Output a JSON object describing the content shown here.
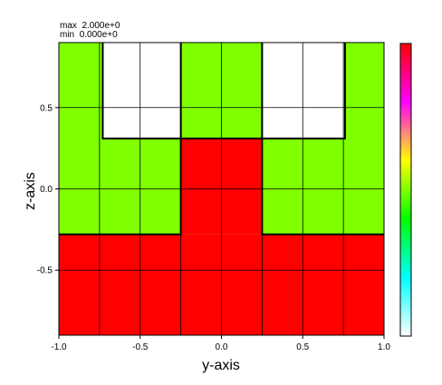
{
  "header": {
    "max_label": "max",
    "max_value": "2.000e+0",
    "min_label": "min",
    "min_value": "0.000e+0"
  },
  "chart_data": {
    "type": "heatmap",
    "xlabel": "y-axis",
    "ylabel": "z-axis",
    "xlim": [
      -1.0,
      1.0
    ],
    "ylim": [
      -0.9,
      0.9
    ],
    "x_ticks": [
      -1.0,
      -0.5,
      0.0,
      0.5,
      1.0
    ],
    "x_tick_labels": [
      "-1.0",
      "-0.5",
      "0.0",
      "0.5",
      "1.0"
    ],
    "y_ticks": [
      -0.5,
      0.0,
      0.5
    ],
    "y_tick_labels": [
      "-0.5",
      "0.0",
      "0.5"
    ],
    "grid": true,
    "value_range": [
      0,
      2
    ],
    "colormap": [
      "#ffffff",
      "#00ffff",
      "#00ff00",
      "#ffff00",
      "#ff00ff",
      "#ff0000"
    ],
    "regions": [
      {
        "value": 1,
        "color": "#7fff00",
        "y": [
          -1.0,
          1.0
        ],
        "z": [
          -0.28,
          0.9
        ]
      },
      {
        "value": 0,
        "color": "#ffffff",
        "y": [
          -0.73,
          -0.25
        ],
        "z": [
          0.31,
          0.9
        ]
      },
      {
        "value": 0,
        "color": "#ffffff",
        "y": [
          0.25,
          0.76
        ],
        "z": [
          0.31,
          0.9
        ]
      },
      {
        "value": 2,
        "color": "#ff0000",
        "y": [
          -1.0,
          1.0
        ],
        "z": [
          -0.9,
          -0.28
        ]
      },
      {
        "value": 2,
        "color": "#ff0000",
        "y": [
          -0.25,
          0.25
        ],
        "z": [
          -0.28,
          0.31
        ]
      }
    ],
    "boundary": [
      [
        -1.0,
        -0.28
      ],
      [
        -0.25,
        -0.28
      ],
      [
        -0.25,
        0.31
      ],
      [
        0.25,
        0.31
      ],
      [
        0.25,
        -0.28
      ],
      [
        1.0,
        -0.28
      ]
    ],
    "white_outlines": [
      [
        [
          -0.73,
          0.9
        ],
        [
          -0.73,
          0.31
        ],
        [
          -0.25,
          0.31
        ],
        [
          -0.25,
          0.9
        ]
      ],
      [
        [
          0.25,
          0.9
        ],
        [
          0.25,
          0.31
        ],
        [
          0.76,
          0.31
        ],
        [
          0.76,
          0.9
        ]
      ]
    ]
  }
}
